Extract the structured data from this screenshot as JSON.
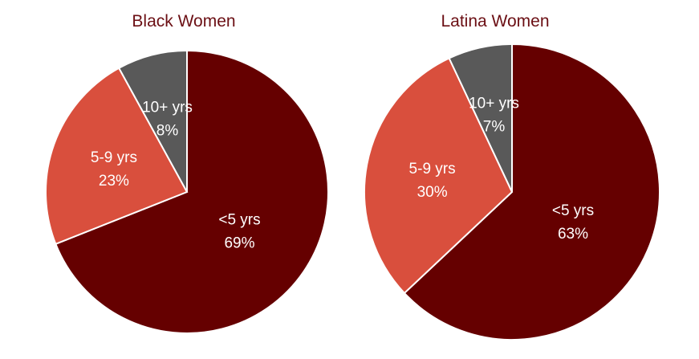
{
  "colors": {
    "lt5": "#650000",
    "5to9": "#d94f3d",
    "10plus": "#595959",
    "title": "#6b0f14",
    "label": "#ffffff"
  },
  "chart_data": [
    {
      "type": "pie",
      "title": "Black Women",
      "slices": [
        {
          "label": "<5 yrs",
          "value": 69,
          "display": "69%",
          "color": "#650000"
        },
        {
          "label": "5-9 yrs",
          "value": 23,
          "display": "23%",
          "color": "#d94f3d"
        },
        {
          "label": "10+ yrs",
          "value": 8,
          "display": "8%",
          "color": "#595959"
        }
      ]
    },
    {
      "type": "pie",
      "title": "Latina Women",
      "slices": [
        {
          "label": "<5 yrs",
          "value": 63,
          "display": "63%",
          "color": "#650000"
        },
        {
          "label": "5-9 yrs",
          "value": 30,
          "display": "30%",
          "color": "#d94f3d"
        },
        {
          "label": "10+ yrs",
          "value": 7,
          "display": "7%",
          "color": "#595959"
        }
      ]
    }
  ]
}
